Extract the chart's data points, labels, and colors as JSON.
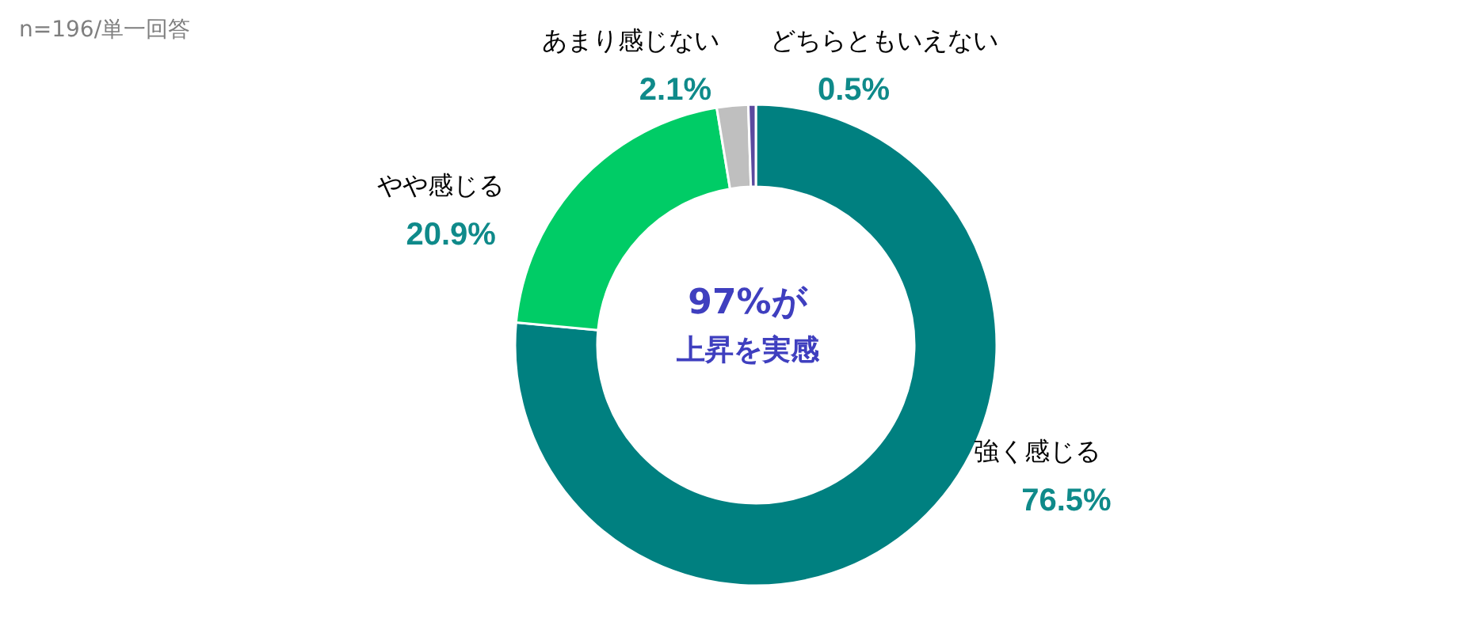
{
  "chart_data": {
    "type": "donut",
    "categories": [
      "強く感じる",
      "やや感じる",
      "あまり感じない",
      "どちらともいえない"
    ],
    "values": [
      76.5,
      20.9,
      2.1,
      0.5
    ],
    "colors": [
      "#008080",
      "#00cc66",
      "#bfbfbf",
      "#5b4a9e"
    ],
    "value_labels": [
      "76.5%",
      "20.9%",
      "2.1%",
      "0.5%"
    ],
    "annotations": [
      "n=196/単一回答",
      "97%が",
      "上昇を実感"
    ],
    "legend": false
  }
}
